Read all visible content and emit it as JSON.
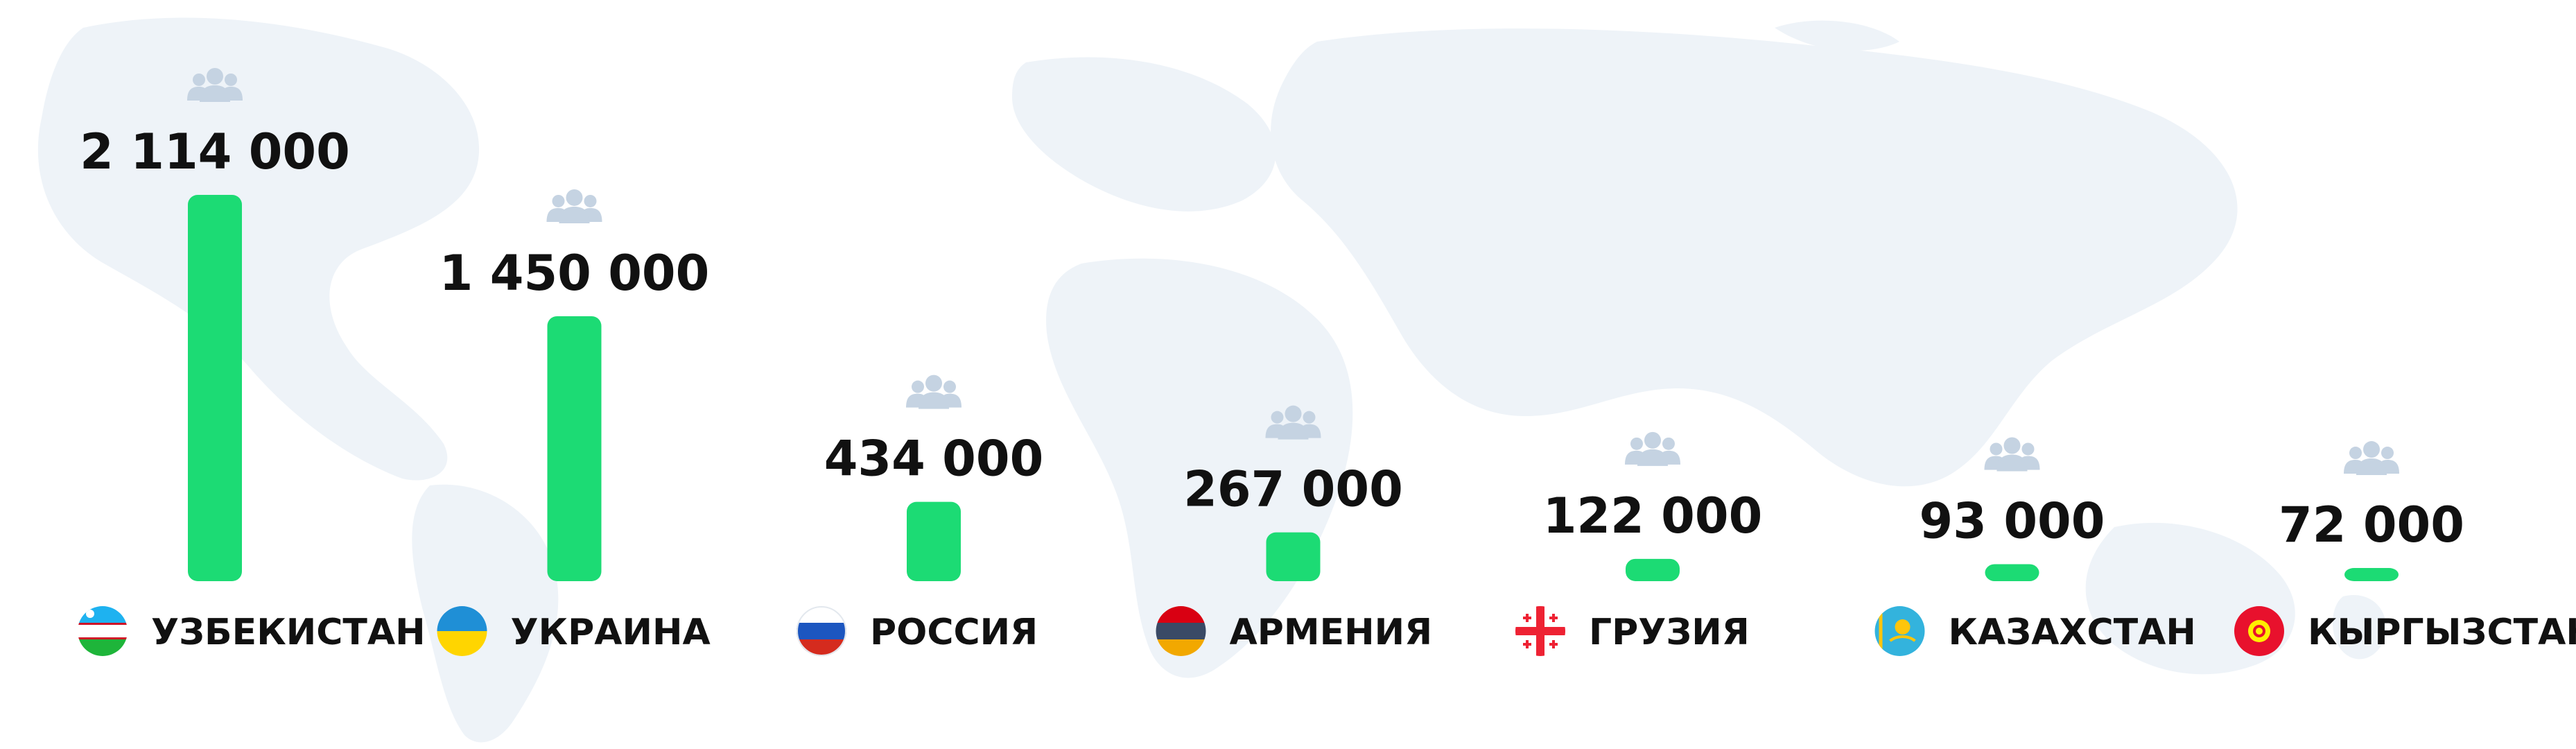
{
  "chart_data": {
    "type": "bar",
    "categories": [
      "УЗБЕКИСТАН",
      "УКРАИНА",
      "РОССИЯ",
      "АРМЕНИЯ",
      "ГРУЗИЯ",
      "КАЗАХСТАН",
      "КЫРГЫЗСТАН"
    ],
    "values": [
      2114000,
      1450000,
      434000,
      267000,
      122000,
      93000,
      72000
    ],
    "value_labels": [
      "2 114 000",
      "1 450 000",
      "434 000",
      "267 000",
      "122 000",
      "93 000",
      "72 000"
    ],
    "flag_icons": [
      "uzbekistan-flag-icon",
      "ukraine-flag-icon",
      "russia-flag-icon",
      "armenia-flag-icon",
      "georgia-flag-icon",
      "kazakhstan-flag-icon",
      "kyrgyzstan-flag-icon"
    ],
    "marker_icon": "people-icon",
    "bar_color": "#1cdb74",
    "icon_color": "#c5d3e2",
    "background_map_color": "#eef3f8",
    "legend": "none",
    "grid": false
  }
}
